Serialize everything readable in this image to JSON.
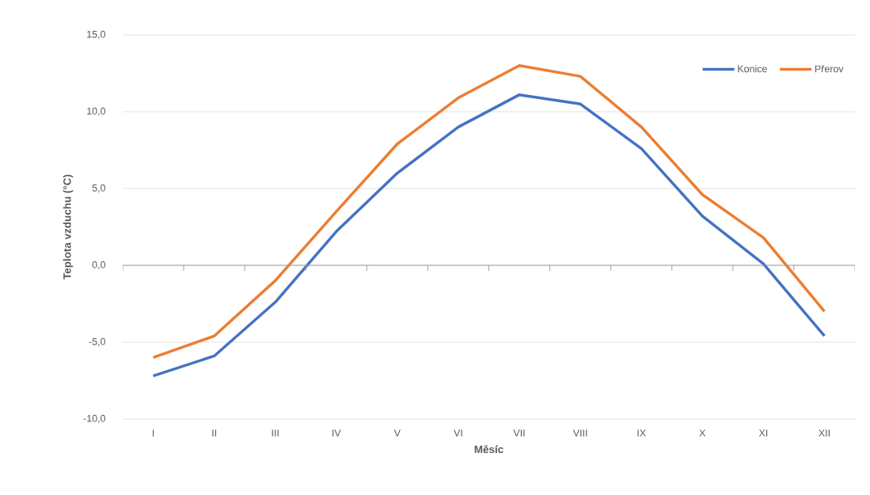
{
  "chart_data": {
    "type": "line",
    "xlabel": "Měsíc",
    "ylabel": "Teplota vzduchu (°C)",
    "categories": [
      "I",
      "II",
      "III",
      "IV",
      "V",
      "VI",
      "VII",
      "VIII",
      "IX",
      "X",
      "XI",
      "XII"
    ],
    "series": [
      {
        "name": "Konice",
        "color": "#4472c4",
        "values": [
          -7.2,
          -5.9,
          -2.4,
          2.2,
          6.0,
          9.0,
          11.1,
          10.5,
          7.6,
          3.2,
          0.1,
          -4.6
        ]
      },
      {
        "name": "Přerov",
        "color": "#ed7d31",
        "values": [
          -6.0,
          -4.6,
          -1.0,
          3.5,
          7.9,
          10.9,
          13.0,
          12.3,
          9.0,
          4.6,
          1.8,
          -3.0
        ]
      }
    ],
    "ylim": [
      -10,
      15
    ],
    "yticks": [
      {
        "value": -10,
        "label": "-10,0"
      },
      {
        "value": -5,
        "label": "-5,0"
      },
      {
        "value": 0,
        "label": "0,0"
      },
      {
        "value": 5,
        "label": "5,0"
      },
      {
        "value": 10,
        "label": "10,0"
      },
      {
        "value": 15,
        "label": "15,0"
      }
    ],
    "grid": "y",
    "legend": "top right",
    "marker": "none",
    "line_style": "solid"
  }
}
